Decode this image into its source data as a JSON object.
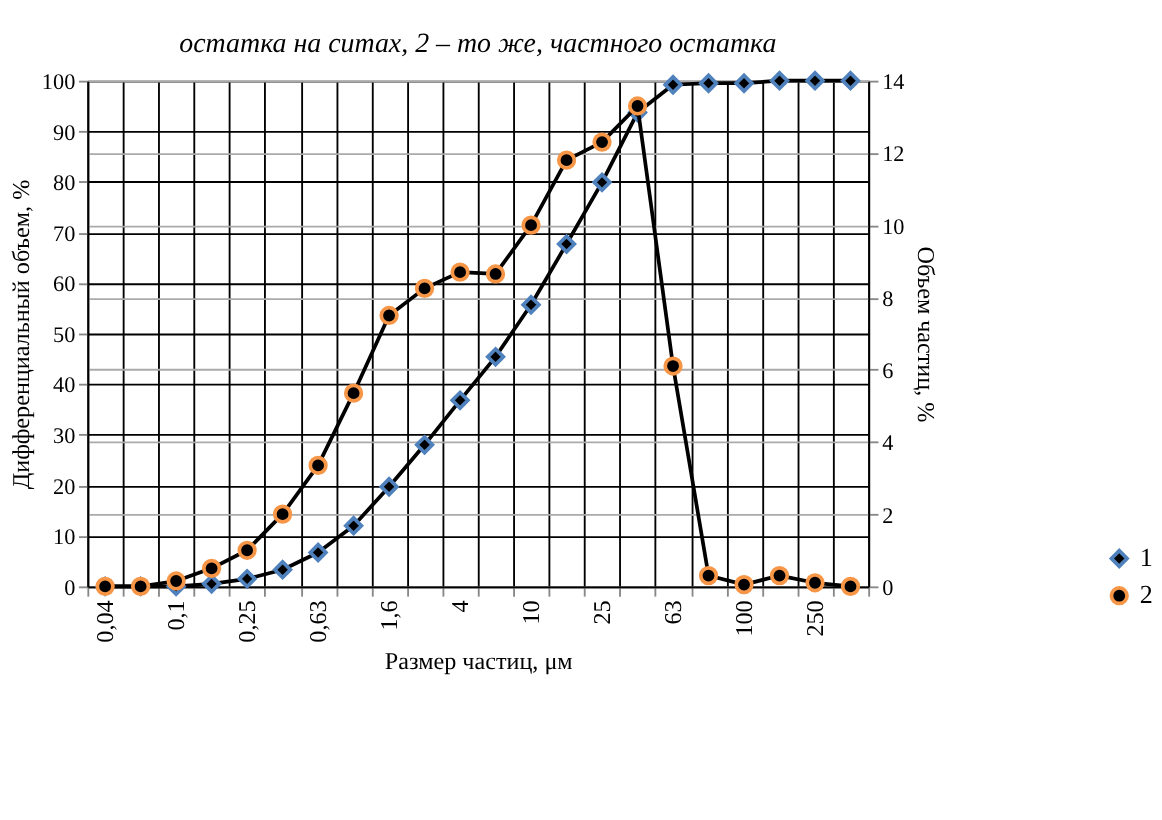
{
  "chart_data": {
    "type": "line",
    "annotations": [
      "остатка на ситах, 2 – то же, частного остатка"
    ],
    "xlabel": "Размер частиц, μм",
    "ylabel": "Дифференциальный объем, %",
    "y2label": "Объем частиц, %",
    "categories": [
      "0,04",
      null,
      "0,1",
      null,
      "0,25",
      null,
      "0,63",
      null,
      "1,6",
      null,
      "4",
      null,
      "10",
      null,
      "25",
      null,
      "63",
      null,
      "100",
      null,
      "250",
      null
    ],
    "ylim": [
      0,
      100
    ],
    "yticks": [
      0,
      10,
      20,
      30,
      40,
      50,
      60,
      70,
      80,
      90,
      100
    ],
    "y2lim": [
      0,
      14
    ],
    "y2ticks": [
      0,
      2,
      4,
      6,
      8,
      10,
      12,
      14
    ],
    "grid": true,
    "legend": "bottom right",
    "series": [
      {
        "name": "1",
        "color": "#4f81bd",
        "marker": "diamond",
        "values": [
          0,
          0,
          0,
          0.5,
          1.5,
          3.3,
          6.7,
          12,
          19.7,
          28,
          36.8,
          45.4,
          55.7,
          67.7,
          79.9,
          93.7,
          99.2,
          99.5,
          99.5,
          100,
          100,
          100
        ]
      },
      {
        "name": "2",
        "color": "#f79646",
        "marker": "circle",
        "axis": "y2",
        "values": [
          0,
          0,
          0.15,
          0.5,
          1.0,
          2.0,
          3.35,
          5.35,
          7.5,
          8.25,
          8.7,
          8.65,
          10.0,
          11.8,
          12.3,
          13.3,
          6.1,
          0.3,
          0.05,
          0.3,
          0.1,
          0
        ]
      }
    ]
  }
}
